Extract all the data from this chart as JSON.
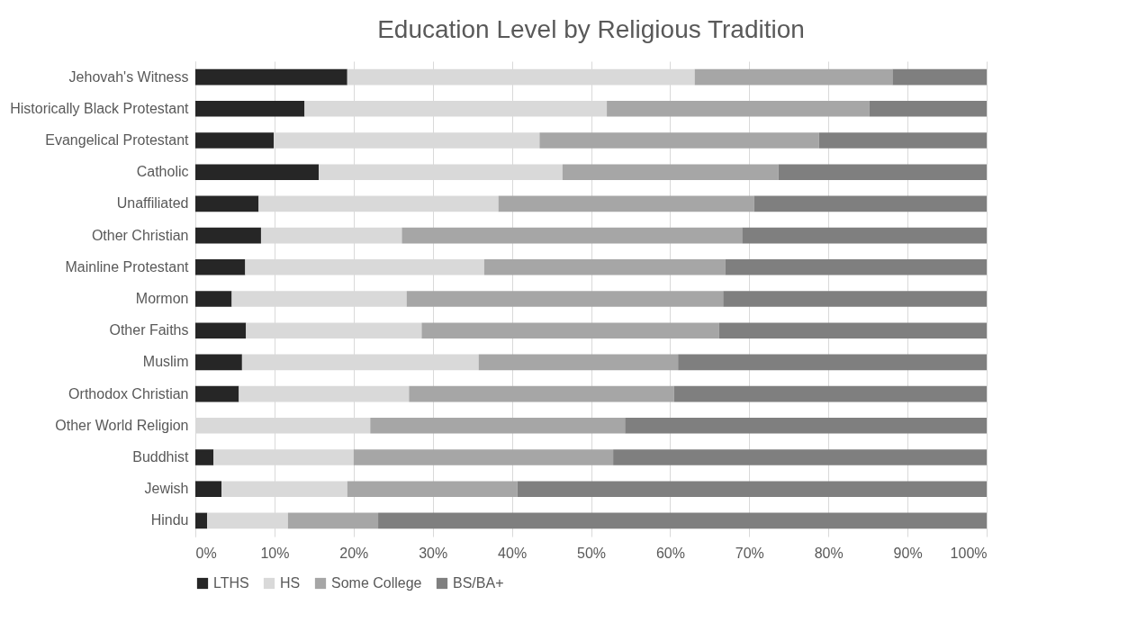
{
  "chart_data": {
    "type": "bar",
    "orientation": "horizontal",
    "stacked": true,
    "title": "Education Level by Religious Tradition",
    "categories": [
      "Jehovah's Witness",
      "Historically Black Protestant",
      "Evangelical Protestant",
      "Catholic",
      "Unaffiliated",
      "Other Christian",
      "Mainline Protestant",
      "Mormon",
      "Other Faiths",
      "Muslim",
      "Orthodox Christian",
      "Other World Religion",
      "Buddhist",
      "Jewish",
      "Hindu"
    ],
    "series": [
      {
        "name": "LTHS",
        "color": "#262626",
        "values": [
          19.2,
          13.8,
          9.9,
          15.6,
          8.0,
          8.3,
          6.3,
          4.6,
          6.4,
          5.9,
          5.5,
          0,
          2.3,
          3.3,
          1.5
        ]
      },
      {
        "name": "HS",
        "color": "#d9d9d9",
        "values": [
          43.9,
          38.2,
          33.6,
          30.8,
          30.3,
          17.8,
          30.2,
          22.1,
          22.2,
          29.9,
          21.5,
          22.1,
          17.7,
          15.9,
          10.2
        ]
      },
      {
        "name": "Some College",
        "color": "#a6a6a6",
        "values": [
          25.0,
          33.2,
          35.3,
          27.3,
          32.3,
          43.0,
          30.5,
          40.0,
          37.6,
          25.2,
          33.5,
          32.2,
          32.8,
          21.5,
          11.4
        ]
      },
      {
        "name": "BS/BA+",
        "color": "#7f7f7f",
        "values": [
          11.9,
          14.8,
          21.2,
          26.3,
          29.4,
          30.9,
          33.0,
          33.3,
          33.8,
          39.0,
          39.5,
          45.7,
          47.2,
          59.3,
          76.9
        ]
      }
    ],
    "xlim": [
      0,
      100
    ],
    "xticks": [
      {
        "value": 0,
        "label": "0%"
      },
      {
        "value": 10,
        "label": "10%"
      },
      {
        "value": 20,
        "label": "20%"
      },
      {
        "value": 30,
        "label": "30%"
      },
      {
        "value": 40,
        "label": "40%"
      },
      {
        "value": 50,
        "label": "50%"
      },
      {
        "value": 60,
        "label": "60%"
      },
      {
        "value": 70,
        "label": "70%"
      },
      {
        "value": 80,
        "label": "80%"
      },
      {
        "value": 90,
        "label": "90%"
      },
      {
        "value": 100,
        "label": "100%"
      }
    ],
    "grid": "x",
    "legend": "bottom"
  }
}
